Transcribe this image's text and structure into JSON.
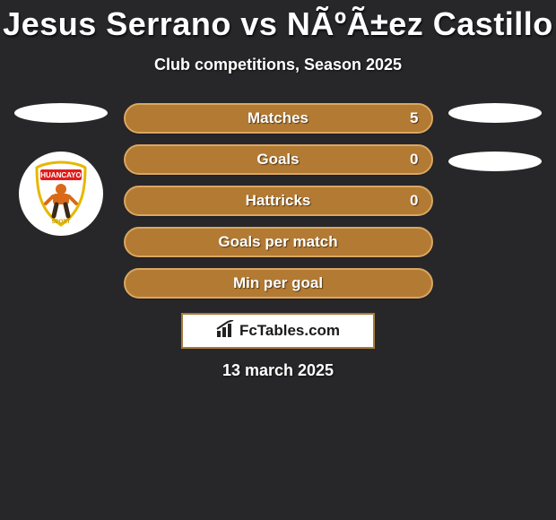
{
  "header": {
    "title": "Jesus Serrano vs NÃºÃ±ez Castillo",
    "subtitle": "Club competitions, Season 2025"
  },
  "stats": [
    {
      "label": "Matches",
      "value": "5",
      "show_value": true
    },
    {
      "label": "Goals",
      "value": "0",
      "show_value": true
    },
    {
      "label": "Hattricks",
      "value": "0",
      "show_value": true
    },
    {
      "label": "Goals per match",
      "value": "",
      "show_value": false
    },
    {
      "label": "Min per goal",
      "value": "",
      "show_value": false
    }
  ],
  "brand": {
    "text": "FcTables.com"
  },
  "footer": {
    "date": "13 march 2025"
  },
  "style": {
    "pill_bg": "#b37a33",
    "pill_border": "#d9a761",
    "page_bg": "#27272a",
    "brand_border": "#ab7a3b",
    "title_fontsize": 36,
    "subtitle_fontsize": 18,
    "stat_fontsize": 17
  },
  "left_badge": {
    "label": "HUANCAYO",
    "banner_bg": "#e11b1b",
    "shield_border": "#e6b800",
    "shield_fill": "#ffffff",
    "figure_color": "#d86a1a"
  }
}
